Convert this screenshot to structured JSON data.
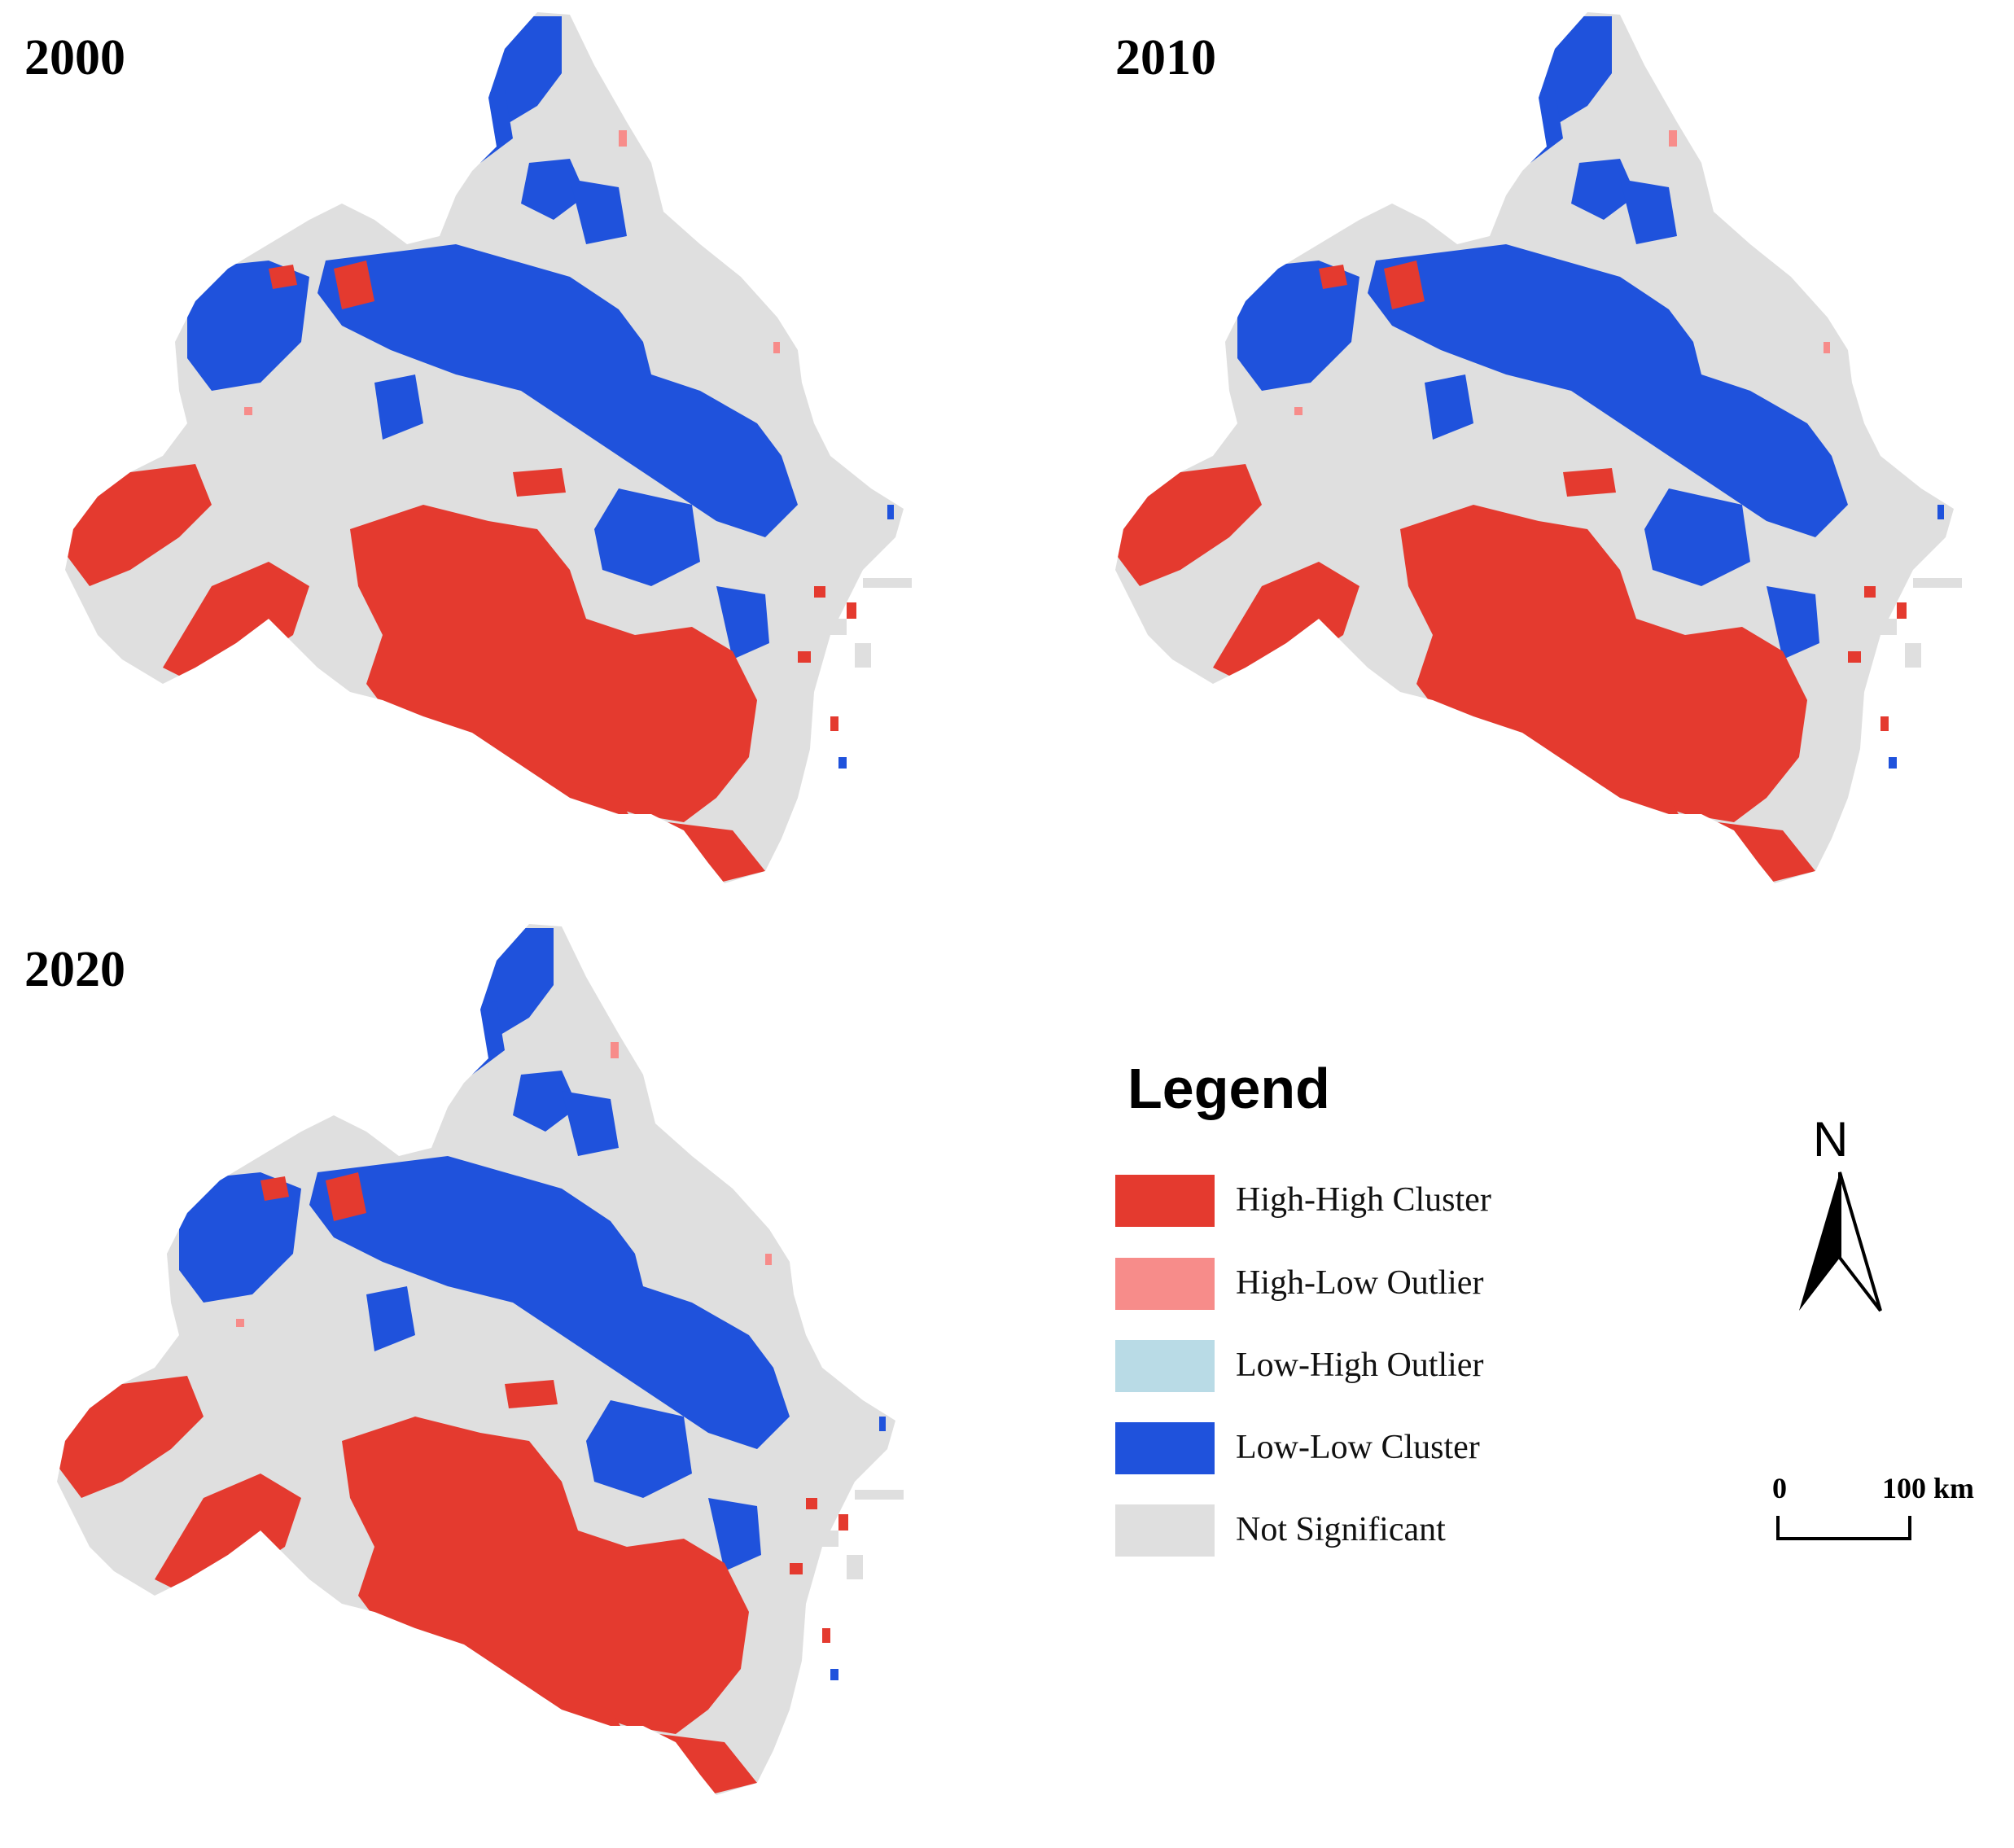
{
  "maps": [
    {
      "year": "2000"
    },
    {
      "year": "2010"
    },
    {
      "year": "2020"
    }
  ],
  "legend": {
    "title": "Legend",
    "items": [
      {
        "label": "High-High Cluster",
        "color": "#e43a2f"
      },
      {
        "label": "High-Low Outlier",
        "color": "#f78c8a"
      },
      {
        "label": "Low-High Outlier",
        "color": "#b9dbe6"
      },
      {
        "label": "Low-Low Cluster",
        "color": "#1f52dc"
      },
      {
        "label": "Not Significant",
        "color": "#dfdfdf"
      }
    ]
  },
  "north_arrow": {
    "label": "N"
  },
  "scale_bar": {
    "start_label": "0",
    "end_label": "100 km"
  }
}
